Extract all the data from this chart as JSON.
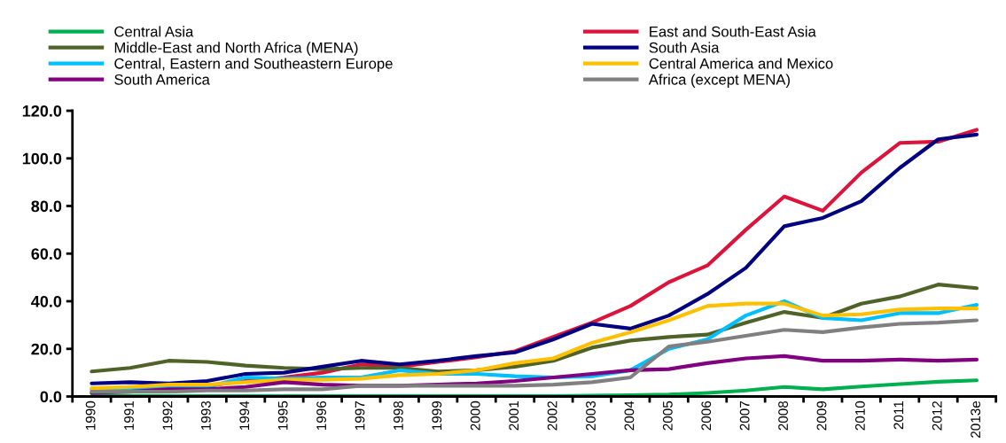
{
  "chart_data": {
    "type": "line",
    "categories": [
      "1990",
      "1991",
      "1992",
      "1993",
      "1994",
      "1995",
      "1996",
      "1997",
      "1998",
      "1999",
      "2000",
      "2001",
      "2002",
      "2003",
      "2004",
      "2005",
      "2006",
      "2007",
      "2008",
      "2009",
      "2010",
      "2011",
      "2012",
      "2013e"
    ],
    "series": [
      {
        "name": "Central Asia",
        "color": "#00b050",
        "values": [
          0.2,
          0.2,
          0.2,
          0.2,
          0.2,
          0.2,
          0.2,
          0.2,
          0.2,
          0.2,
          0.2,
          0.2,
          0.2,
          0.3,
          0.5,
          0.8,
          1.5,
          2.5,
          4,
          3,
          4.2,
          5.2,
          6.2,
          6.8
        ]
      },
      {
        "name": "East and South-East Asia",
        "color": "#dc143c",
        "values": [
          null,
          null,
          null,
          4.5,
          6.5,
          8,
          10,
          13.5,
          12.5,
          14.5,
          16.5,
          19,
          25,
          31,
          38,
          48,
          55,
          70,
          84,
          78,
          94,
          106.5,
          107,
          112
        ]
      },
      {
        "name": "Middle-East and North Africa (MENA)",
        "color": "#4f6228",
        "values": [
          10.5,
          12,
          15,
          14.5,
          13,
          12,
          11.5,
          12,
          12,
          10.5,
          11,
          12.5,
          15,
          20.5,
          23.5,
          25,
          26,
          31,
          35.5,
          33,
          39,
          42,
          47,
          45.5
        ]
      },
      {
        "name": "South Asia",
        "color": "#000080",
        "values": [
          5.5,
          6,
          5.5,
          6.5,
          9.5,
          10,
          12.5,
          15,
          13.5,
          15,
          17,
          18.5,
          24,
          30.5,
          28.5,
          34,
          43,
          54,
          71.5,
          75,
          82,
          96,
          108,
          110
        ]
      },
      {
        "name": "Central, Eastern and Southeastern Europe",
        "color": "#00bfff",
        "values": [
          3,
          3.5,
          4,
          4,
          8,
          7.5,
          8,
          8,
          11,
          9.5,
          9.5,
          8.5,
          8,
          8.5,
          11,
          20,
          24,
          34,
          40,
          33,
          32,
          35,
          35,
          38.5
        ]
      },
      {
        "name": "Central America and Mexico",
        "color": "#ffc000",
        "values": [
          3.5,
          4,
          5,
          5,
          6,
          7,
          7,
          7.5,
          9,
          9.5,
          11,
          14,
          16,
          22.5,
          27,
          32,
          38,
          39,
          39,
          34,
          34.5,
          36.5,
          37,
          37
        ]
      },
      {
        "name": "South America",
        "color": "#800080",
        "values": [
          1.5,
          2,
          3,
          3,
          4,
          6,
          5,
          4.5,
          4.5,
          5,
          5.5,
          6.5,
          8,
          9.5,
          11,
          11.5,
          14,
          16,
          17,
          15,
          15,
          15.5,
          15,
          15.5
        ]
      },
      {
        "name": "Africa (except MENA)",
        "color": "#808080",
        "values": [
          2,
          2,
          2,
          2.5,
          2.5,
          3,
          3,
          4.5,
          4.5,
          4.5,
          4.5,
          4.5,
          5,
          6,
          8,
          21,
          23,
          25.5,
          28,
          27,
          29,
          30.5,
          31,
          32
        ]
      }
    ],
    "ylim": [
      0,
      120
    ],
    "yticks": [
      {
        "value": 0,
        "label": "0.0"
      },
      {
        "value": 20,
        "label": "20.0"
      },
      {
        "value": 40,
        "label": "40.0"
      },
      {
        "value": 60,
        "label": "60.0"
      },
      {
        "value": 80,
        "label": "80.0"
      },
      {
        "value": 100,
        "label": "100.0"
      },
      {
        "value": 120,
        "label": "120.0"
      }
    ],
    "legend": "top",
    "grid": false,
    "marker": "none",
    "line_style": "solid"
  }
}
